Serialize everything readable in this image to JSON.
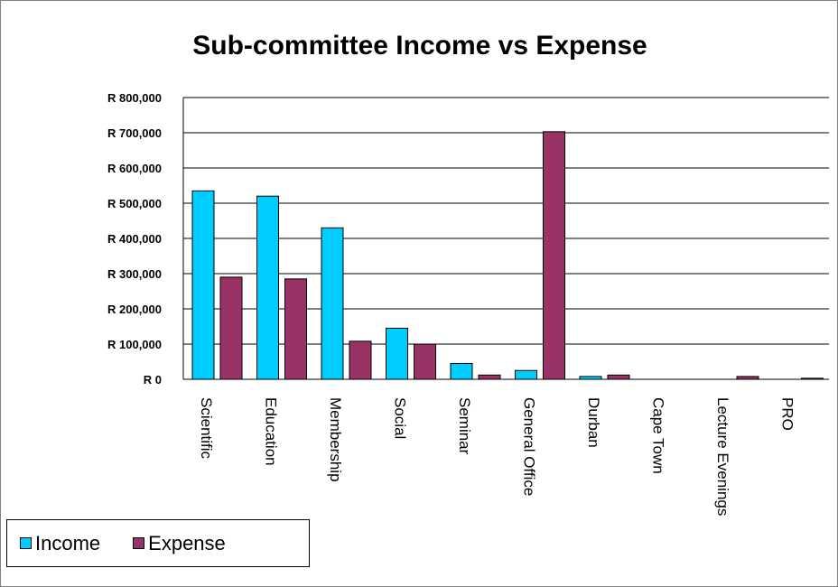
{
  "chart_data": {
    "type": "bar",
    "title": "Sub-committee Income vs Expense",
    "xlabel": "",
    "ylabel": "",
    "ylim": [
      0,
      800000
    ],
    "y_ticks": [
      "R 0",
      "R 100,000",
      "R 200,000",
      "R 300,000",
      "R 400,000",
      "R 500,000",
      "R 600,000",
      "R 700,000",
      "R 800,000"
    ],
    "y_tick_values": [
      0,
      100000,
      200000,
      300000,
      400000,
      500000,
      600000,
      700000,
      800000
    ],
    "categories": [
      "Scientific",
      "Education",
      "Membership",
      "Social",
      "Seminar",
      "General Office",
      "Durban",
      "Cape Town",
      "Lecture Evenings",
      "PRO"
    ],
    "series": [
      {
        "name": "Income",
        "color": "#00CCFF",
        "values": [
          535000,
          520000,
          430000,
          145000,
          45000,
          25000,
          8000,
          0,
          0,
          0
        ]
      },
      {
        "name": "Expense",
        "color": "#993366",
        "values": [
          290000,
          285000,
          108000,
          100000,
          12000,
          703000,
          12000,
          0,
          8000,
          3000
        ]
      }
    ],
    "grid": true,
    "legend": "bottom-left"
  }
}
